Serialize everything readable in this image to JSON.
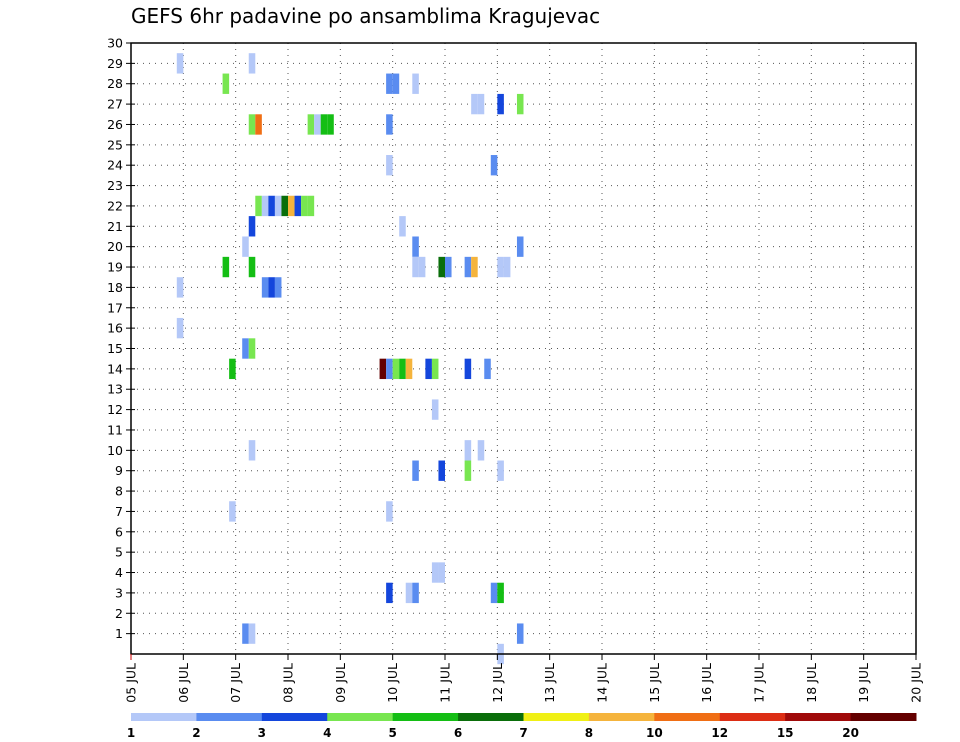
{
  "chart_data": {
    "type": "heatmap",
    "title": "GEFS 6hr padavine po ansamblima Kragujevac",
    "xlabel": "",
    "ylabel": "",
    "x_ticks": [
      "05 JUL",
      "06 JUL",
      "07 JUL",
      "08 JUL",
      "09 JUL",
      "10 JUL",
      "11 JUL",
      "12 JUL",
      "13 JUL",
      "14 JUL",
      "15 JUL",
      "16 JUL",
      "17 JUL",
      "18 JUL",
      "19 JUL",
      "20 JUL"
    ],
    "y_ticks": [
      "1",
      "2",
      "3",
      "4",
      "5",
      "6",
      "7",
      "8",
      "9",
      "10",
      "11",
      "12",
      "13",
      "14",
      "15",
      "16",
      "17",
      "18",
      "19",
      "20",
      "21",
      "22",
      "23",
      "24",
      "25",
      "26",
      "27",
      "28",
      "29",
      "30"
    ],
    "xlim": [
      0,
      60
    ],
    "ylim": [
      0,
      30
    ],
    "grid": true,
    "colorbar": {
      "labels": [
        "1",
        "2",
        "3",
        "4",
        "5",
        "6",
        "7",
        "8",
        "10",
        "12",
        "15",
        "20"
      ],
      "colors": [
        "#b4c8f8",
        "#5a8cf0",
        "#1446dc",
        "#78e650",
        "#14be14",
        "#0a6e0a",
        "#f0f014",
        "#f5b43c",
        "#f06e14",
        "#dc2d14",
        "#a00a0a",
        "#640000"
      ]
    },
    "points": [
      [
        3.75,
        29,
        0
      ],
      [
        9.25,
        29,
        0
      ],
      [
        7.25,
        28,
        3
      ],
      [
        19.75,
        28,
        1
      ],
      [
        20.25,
        28,
        1
      ],
      [
        21.75,
        28,
        0
      ],
      [
        26.25,
        27,
        0
      ],
      [
        26.75,
        27,
        0
      ],
      [
        28.25,
        27,
        2
      ],
      [
        29.75,
        27,
        3
      ],
      [
        9.25,
        26,
        3
      ],
      [
        9.75,
        26,
        8
      ],
      [
        13.75,
        26,
        3
      ],
      [
        14.25,
        26,
        0
      ],
      [
        14.75,
        26,
        4
      ],
      [
        15.25,
        26,
        4
      ],
      [
        19.75,
        26,
        1
      ],
      [
        19.75,
        24,
        0
      ],
      [
        27.75,
        24,
        1
      ],
      [
        9.75,
        22,
        3
      ],
      [
        10.25,
        22,
        0
      ],
      [
        10.75,
        22,
        2
      ],
      [
        11.25,
        22,
        0
      ],
      [
        11.75,
        22,
        5
      ],
      [
        12.25,
        22,
        7
      ],
      [
        12.75,
        22,
        2
      ],
      [
        13.25,
        22,
        3
      ],
      [
        13.75,
        22,
        3
      ],
      [
        9.25,
        21,
        2
      ],
      [
        20.75,
        21,
        0
      ],
      [
        8.75,
        20,
        0
      ],
      [
        21.75,
        20,
        1
      ],
      [
        29.75,
        20,
        1
      ],
      [
        7.25,
        19,
        4
      ],
      [
        9.25,
        19,
        4
      ],
      [
        21.75,
        19,
        0
      ],
      [
        22.25,
        19,
        0
      ],
      [
        23.75,
        19,
        5
      ],
      [
        24.25,
        19,
        1
      ],
      [
        25.75,
        19,
        1
      ],
      [
        26.25,
        19,
        7
      ],
      [
        28.25,
        19,
        0
      ],
      [
        28.75,
        19,
        0
      ],
      [
        3.75,
        18,
        0
      ],
      [
        10.25,
        18,
        1
      ],
      [
        10.75,
        18,
        2
      ],
      [
        11.25,
        18,
        1
      ],
      [
        3.75,
        16,
        0
      ],
      [
        8.75,
        15,
        1
      ],
      [
        9.25,
        15,
        3
      ],
      [
        7.75,
        14,
        4
      ],
      [
        19.25,
        14,
        11
      ],
      [
        19.75,
        14,
        1
      ],
      [
        20.25,
        14,
        3
      ],
      [
        20.75,
        14,
        4
      ],
      [
        21.25,
        14,
        7
      ],
      [
        22.75,
        14,
        2
      ],
      [
        23.25,
        14,
        3
      ],
      [
        25.75,
        14,
        2
      ],
      [
        27.25,
        14,
        1
      ],
      [
        23.25,
        12,
        0
      ],
      [
        9.25,
        10,
        0
      ],
      [
        25.75,
        10,
        0
      ],
      [
        26.75,
        10,
        0
      ],
      [
        21.75,
        9,
        1
      ],
      [
        23.75,
        9,
        2
      ],
      [
        25.75,
        9,
        3
      ],
      [
        28.25,
        9,
        0
      ],
      [
        7.75,
        7,
        0
      ],
      [
        19.75,
        7,
        0
      ],
      [
        23.25,
        4,
        0
      ],
      [
        23.75,
        4,
        0
      ],
      [
        19.75,
        3,
        2
      ],
      [
        21.25,
        3,
        0
      ],
      [
        21.75,
        3,
        1
      ],
      [
        27.75,
        3,
        1
      ],
      [
        28.25,
        3,
        4
      ],
      [
        8.75,
        1,
        1
      ],
      [
        9.25,
        1,
        0
      ],
      [
        29.75,
        1,
        1
      ],
      [
        28.25,
        0,
        0
      ]
    ]
  }
}
